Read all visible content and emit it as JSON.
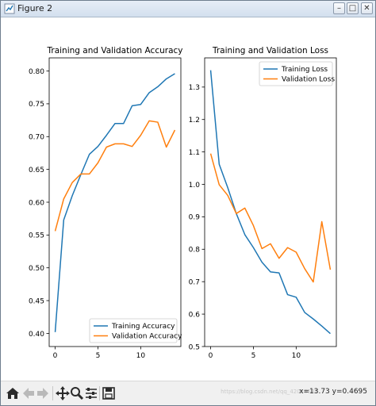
{
  "window": {
    "title": "Figure 2",
    "buttons": {
      "minimize": "–",
      "maximize": "□",
      "close": "✕"
    }
  },
  "toolbar": {
    "icons": [
      "home-icon",
      "back-arrow-icon",
      "forward-arrow-icon",
      "pan-icon",
      "zoom-icon",
      "configure-subplots-icon",
      "save-icon"
    ],
    "coordinates": "x=13.73 y=0.4695",
    "watermark": "https://blog.csdn.net/qq_42018588"
  },
  "colors": {
    "training": "#1f77b4",
    "validation": "#ff7f0e"
  },
  "chart_data": [
    {
      "type": "line",
      "title": "Training and Validation Accuracy",
      "xlabel": "",
      "ylabel": "",
      "xlim": [
        -0.7,
        14.7
      ],
      "ylim": [
        0.38,
        0.82
      ],
      "xticks": [
        0,
        5,
        10
      ],
      "yticks": [
        0.4,
        0.45,
        0.5,
        0.55,
        0.6,
        0.65,
        0.7,
        0.75,
        0.8
      ],
      "ytick_labels": [
        "0.40",
        "0.45",
        "0.50",
        "0.55",
        "0.60",
        "0.65",
        "0.70",
        "0.75",
        "0.80"
      ],
      "legend_position": "lower-right",
      "grid": false,
      "x": [
        0,
        1,
        2,
        3,
        4,
        5,
        6,
        7,
        8,
        9,
        10,
        11,
        12,
        13,
        14
      ],
      "series": [
        {
          "name": "Training Accuracy",
          "color": "#1f77b4",
          "values": [
            0.402,
            0.573,
            0.61,
            0.642,
            0.673,
            0.685,
            0.702,
            0.72,
            0.72,
            0.747,
            0.749,
            0.767,
            0.776,
            0.788,
            0.796
          ]
        },
        {
          "name": "Validation Accuracy",
          "color": "#ff7f0e",
          "values": [
            0.556,
            0.605,
            0.63,
            0.643,
            0.643,
            0.66,
            0.684,
            0.689,
            0.689,
            0.685,
            0.702,
            0.724,
            0.722,
            0.684,
            0.71
          ]
        }
      ]
    },
    {
      "type": "line",
      "title": "Training and Validation Loss",
      "xlabel": "",
      "ylabel": "",
      "xlim": [
        -0.7,
        14.7
      ],
      "ylim": [
        0.5,
        1.39
      ],
      "xticks": [
        0,
        5,
        10
      ],
      "yticks": [
        0.5,
        0.6,
        0.7,
        0.8,
        0.9,
        1.0,
        1.1,
        1.2,
        1.3
      ],
      "ytick_labels": [
        "0.5",
        "0.6",
        "0.7",
        "0.8",
        "0.9",
        "1.0",
        "1.1",
        "1.2",
        "1.3"
      ],
      "legend_position": "upper-right",
      "grid": false,
      "x": [
        0,
        1,
        2,
        3,
        4,
        5,
        6,
        7,
        8,
        9,
        10,
        11,
        12,
        13,
        14
      ],
      "series": [
        {
          "name": "Training Loss",
          "color": "#1f77b4",
          "values": [
            1.352,
            1.062,
            0.99,
            0.91,
            0.845,
            0.805,
            0.76,
            0.73,
            0.727,
            0.66,
            0.652,
            0.605,
            0.585,
            0.563,
            0.54
          ]
        },
        {
          "name": "Validation Loss",
          "color": "#ff7f0e",
          "values": [
            1.095,
            0.999,
            0.966,
            0.91,
            0.927,
            0.873,
            0.802,
            0.817,
            0.772,
            0.805,
            0.791,
            0.74,
            0.699,
            0.885,
            0.737
          ]
        }
      ]
    }
  ]
}
